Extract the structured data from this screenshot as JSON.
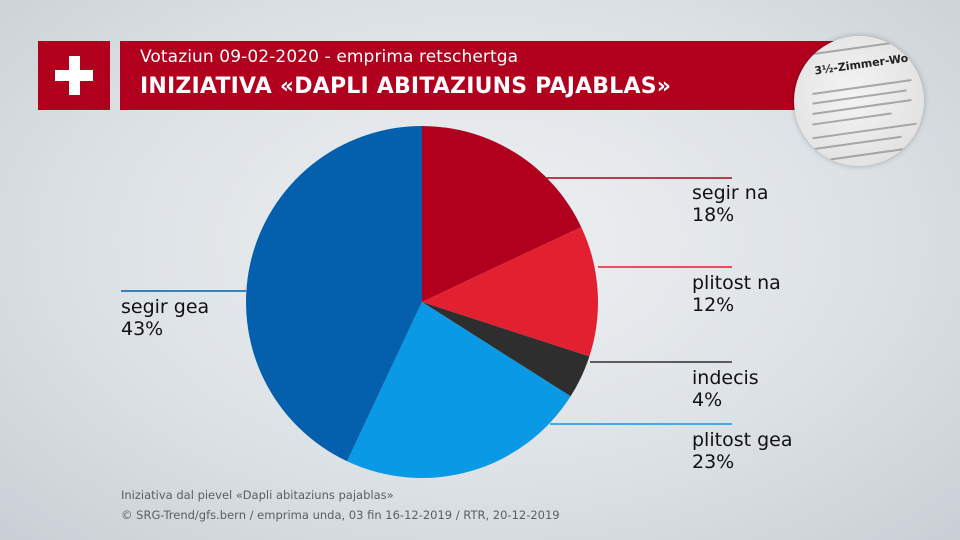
{
  "header": {
    "subtitle": "Votaziun 09-02-2020 - emprima retschertga",
    "title": "INIZIATIVA «DAPLI ABITAZIUNS PAJABLAS»",
    "flag_color": "#b1001e",
    "flag_icon": "swiss-cross-icon"
  },
  "newspaper_thumbnail": {
    "headline": "3½-Zimmer-Wo"
  },
  "chart_data": {
    "type": "pie",
    "title": "INIZIATIVA «DAPLI ABITAZIUNS PAJABLAS»",
    "slices": [
      {
        "label": "segir na",
        "value": 18,
        "display": "18%",
        "color": "#b1001e"
      },
      {
        "label": "plitost na",
        "value": 12,
        "display": "12%",
        "color": "#e2202f"
      },
      {
        "label": "indecis",
        "value": 4,
        "display": "4%",
        "color": "#2e2e2e"
      },
      {
        "label": "plitost gea",
        "value": 23,
        "display": "23%",
        "color": "#0a99e4"
      },
      {
        "label": "segir gea",
        "value": 43,
        "display": "43%",
        "color": "#0460ad"
      }
    ],
    "start_angle_deg": 0,
    "direction": "clockwise",
    "legend": "none"
  },
  "footer": {
    "note": "Iniziativa dal pievel «Dapli abitaziuns pajablas»",
    "credit": "© SRG-Trend/gfs.bern  /  emprima unda, 03 fin 16-12-2019  / RTR, 20-12-2019"
  }
}
